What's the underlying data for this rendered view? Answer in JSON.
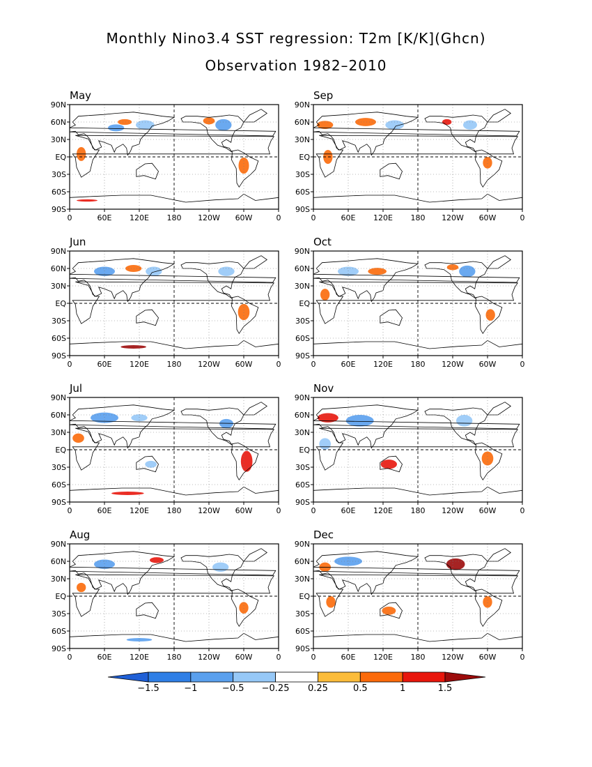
{
  "chart_data": {
    "type": "map",
    "title": "Monthly Nino3.4 SST regression: T2m [K/K](Ghcn)",
    "subtitle": "Observation 1982–2010",
    "lat_ticks": [
      "90N",
      "60N",
      "30N",
      "EQ",
      "30S",
      "60S",
      "90S"
    ],
    "lon_ticks": [
      "0",
      "60E",
      "120E",
      "180",
      "120W",
      "60W",
      "0"
    ],
    "grid": "dashed",
    "panels": [
      {
        "month": "May",
        "blobs": [
          {
            "lon": 80,
            "lat": 50,
            "rx": 14,
            "ry": 6,
            "value": -0.75
          },
          {
            "lon": 95,
            "lat": 60,
            "rx": 12,
            "ry": 5,
            "value": 0.75
          },
          {
            "lon": 130,
            "lat": 55,
            "rx": 16,
            "ry": 8,
            "value": -0.5
          },
          {
            "lon": 20,
            "lat": 5,
            "rx": 8,
            "ry": 12,
            "value": 0.5
          },
          {
            "lon": 240,
            "lat": 62,
            "rx": 10,
            "ry": 6,
            "value": 0.75
          },
          {
            "lon": 265,
            "lat": 55,
            "rx": 14,
            "ry": 10,
            "value": -0.75
          },
          {
            "lon": 300,
            "lat": -15,
            "rx": 9,
            "ry": 14,
            "value": 0.5
          },
          {
            "lon": 30,
            "lat": -75,
            "rx": 18,
            "ry": 2,
            "value": 1.0
          }
        ]
      },
      {
        "month": "Sep",
        "blobs": [
          {
            "lon": 20,
            "lat": 55,
            "rx": 14,
            "ry": 7,
            "value": 0.75
          },
          {
            "lon": 90,
            "lat": 60,
            "rx": 18,
            "ry": 7,
            "value": 0.5
          },
          {
            "lon": 140,
            "lat": 55,
            "rx": 16,
            "ry": 8,
            "value": -0.5
          },
          {
            "lon": 230,
            "lat": 60,
            "rx": 8,
            "ry": 5,
            "value": 1.0
          },
          {
            "lon": 270,
            "lat": 55,
            "rx": 12,
            "ry": 8,
            "value": -0.5
          },
          {
            "lon": 300,
            "lat": -10,
            "rx": 8,
            "ry": 10,
            "value": 0.5
          },
          {
            "lon": 25,
            "lat": 0,
            "rx": 8,
            "ry": 12,
            "value": 0.5
          }
        ]
      },
      {
        "month": "Jun",
        "blobs": [
          {
            "lon": 60,
            "lat": 55,
            "rx": 18,
            "ry": 8,
            "value": -0.75
          },
          {
            "lon": 110,
            "lat": 60,
            "rx": 14,
            "ry": 6,
            "value": 0.5
          },
          {
            "lon": 145,
            "lat": 55,
            "rx": 14,
            "ry": 8,
            "value": -0.5
          },
          {
            "lon": 270,
            "lat": 55,
            "rx": 14,
            "ry": 8,
            "value": -0.5
          },
          {
            "lon": 300,
            "lat": -15,
            "rx": 10,
            "ry": 14,
            "value": 0.5
          },
          {
            "lon": 110,
            "lat": -75,
            "rx": 22,
            "ry": 3,
            "value": 1.5
          }
        ]
      },
      {
        "month": "Oct",
        "blobs": [
          {
            "lon": 60,
            "lat": 55,
            "rx": 18,
            "ry": 8,
            "value": -0.5
          },
          {
            "lon": 110,
            "lat": 55,
            "rx": 16,
            "ry": 6,
            "value": 0.5
          },
          {
            "lon": 240,
            "lat": 62,
            "rx": 10,
            "ry": 5,
            "value": 0.75
          },
          {
            "lon": 265,
            "lat": 55,
            "rx": 14,
            "ry": 10,
            "value": -0.75
          },
          {
            "lon": 20,
            "lat": 15,
            "rx": 8,
            "ry": 10,
            "value": 0.5
          },
          {
            "lon": 305,
            "lat": -20,
            "rx": 8,
            "ry": 10,
            "value": 0.5
          }
        ]
      },
      {
        "month": "Jul",
        "blobs": [
          {
            "lon": 60,
            "lat": 55,
            "rx": 24,
            "ry": 9,
            "value": -0.75
          },
          {
            "lon": 120,
            "lat": 55,
            "rx": 14,
            "ry": 6,
            "value": -0.5
          },
          {
            "lon": 15,
            "lat": 20,
            "rx": 10,
            "ry": 8,
            "value": 0.75
          },
          {
            "lon": 270,
            "lat": 45,
            "rx": 12,
            "ry": 8,
            "value": -0.75
          },
          {
            "lon": 305,
            "lat": -20,
            "rx": 10,
            "ry": 18,
            "value": 1.0
          },
          {
            "lon": 140,
            "lat": -25,
            "rx": 10,
            "ry": 6,
            "value": -0.5
          },
          {
            "lon": 100,
            "lat": -75,
            "rx": 28,
            "ry": 3,
            "value": 1.0
          }
        ]
      },
      {
        "month": "Nov",
        "blobs": [
          {
            "lon": 25,
            "lat": 55,
            "rx": 18,
            "ry": 8,
            "value": 1.0
          },
          {
            "lon": 80,
            "lat": 50,
            "rx": 24,
            "ry": 10,
            "value": -0.75
          },
          {
            "lon": 130,
            "lat": -25,
            "rx": 14,
            "ry": 8,
            "value": 1.0
          },
          {
            "lon": 260,
            "lat": 50,
            "rx": 14,
            "ry": 10,
            "value": -0.5
          },
          {
            "lon": 300,
            "lat": -15,
            "rx": 10,
            "ry": 12,
            "value": 0.75
          },
          {
            "lon": 20,
            "lat": 10,
            "rx": 10,
            "ry": 10,
            "value": -0.5
          }
        ]
      },
      {
        "month": "Aug",
        "blobs": [
          {
            "lon": 60,
            "lat": 55,
            "rx": 18,
            "ry": 8,
            "value": -0.75
          },
          {
            "lon": 150,
            "lat": 62,
            "rx": 12,
            "ry": 5,
            "value": 1.0
          },
          {
            "lon": 260,
            "lat": 50,
            "rx": 14,
            "ry": 8,
            "value": -0.5
          },
          {
            "lon": 300,
            "lat": -20,
            "rx": 8,
            "ry": 10,
            "value": 0.5
          },
          {
            "lon": 120,
            "lat": -75,
            "rx": 22,
            "ry": 3,
            "value": -1.0
          },
          {
            "lon": 20,
            "lat": 15,
            "rx": 8,
            "ry": 8,
            "value": 0.5
          }
        ]
      },
      {
        "month": "Dec",
        "blobs": [
          {
            "lon": 60,
            "lat": 60,
            "rx": 24,
            "ry": 8,
            "value": -0.75
          },
          {
            "lon": 20,
            "lat": 50,
            "rx": 10,
            "ry": 8,
            "value": 0.75
          },
          {
            "lon": 245,
            "lat": 55,
            "rx": 16,
            "ry": 10,
            "value": 1.5
          },
          {
            "lon": 130,
            "lat": -25,
            "rx": 12,
            "ry": 7,
            "value": 0.5
          },
          {
            "lon": 30,
            "lat": -10,
            "rx": 8,
            "ry": 10,
            "value": 0.5
          },
          {
            "lon": 300,
            "lat": -10,
            "rx": 8,
            "ry": 10,
            "value": 0.5
          }
        ]
      }
    ],
    "colorbar": {
      "levels": [
        -1.5,
        -1,
        -0.5,
        -0.25,
        0.25,
        0.5,
        1,
        1.5
      ],
      "labels": [
        "−1.5",
        "−1",
        "−0.5",
        "−0.25",
        "0.25",
        "0.5",
        "1",
        "1.5"
      ],
      "colors": [
        "#1f5fd6",
        "#2f7fe6",
        "#5aa0ee",
        "#96c8f7",
        "#ffffff",
        "#fbbc3a",
        "#fb6a0a",
        "#e8160c",
        "#9c0b0b"
      ]
    }
  }
}
